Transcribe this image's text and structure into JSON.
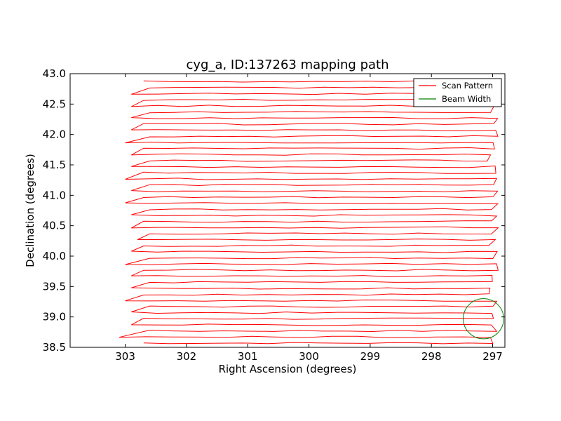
{
  "chart_data": {
    "type": "line",
    "title": "cyg_a, ID:137263 mapping path",
    "xlabel": "Right Ascension (degrees)",
    "ylabel": "Declination (degrees)",
    "xlim": [
      303.9,
      296.8
    ],
    "ylim": [
      38.5,
      43.0
    ],
    "xticks": [
      303,
      302,
      301,
      300,
      299,
      298,
      297
    ],
    "yticks": [
      38.5,
      39.0,
      39.5,
      40.0,
      40.5,
      41.0,
      41.5,
      42.0,
      42.5,
      43.0
    ],
    "x_reversed": true,
    "grid": false,
    "legend_position": "top-right",
    "series": [
      {
        "name": "Scan Pattern",
        "color": "#ff0000",
        "scan": {
          "dec_start": 38.57,
          "dec_end": 42.9,
          "row_step": 0.1,
          "ra_west": 297.0,
          "ra_east_values": [
            302.7,
            303.1,
            302.6,
            302.9,
            302.7,
            302.9,
            302.6,
            303.0,
            302.7,
            302.9,
            302.6,
            302.9,
            302.7,
            303.0,
            302.6,
            302.9,
            302.7,
            302.8,
            302.6,
            302.9,
            302.7,
            302.9,
            302.6,
            303.0,
            302.7,
            302.9,
            302.6,
            303.0,
            302.7,
            302.9,
            302.6,
            302.9,
            302.7,
            303.0,
            302.6,
            302.9,
            302.7,
            302.9,
            302.6,
            302.9,
            302.7,
            302.9,
            302.6,
            302.7
          ]
        }
      },
      {
        "name": "Beam Width",
        "color": "#008000",
        "circle": {
          "ra": 297.15,
          "dec": 38.97,
          "radius": 0.33
        }
      }
    ]
  }
}
